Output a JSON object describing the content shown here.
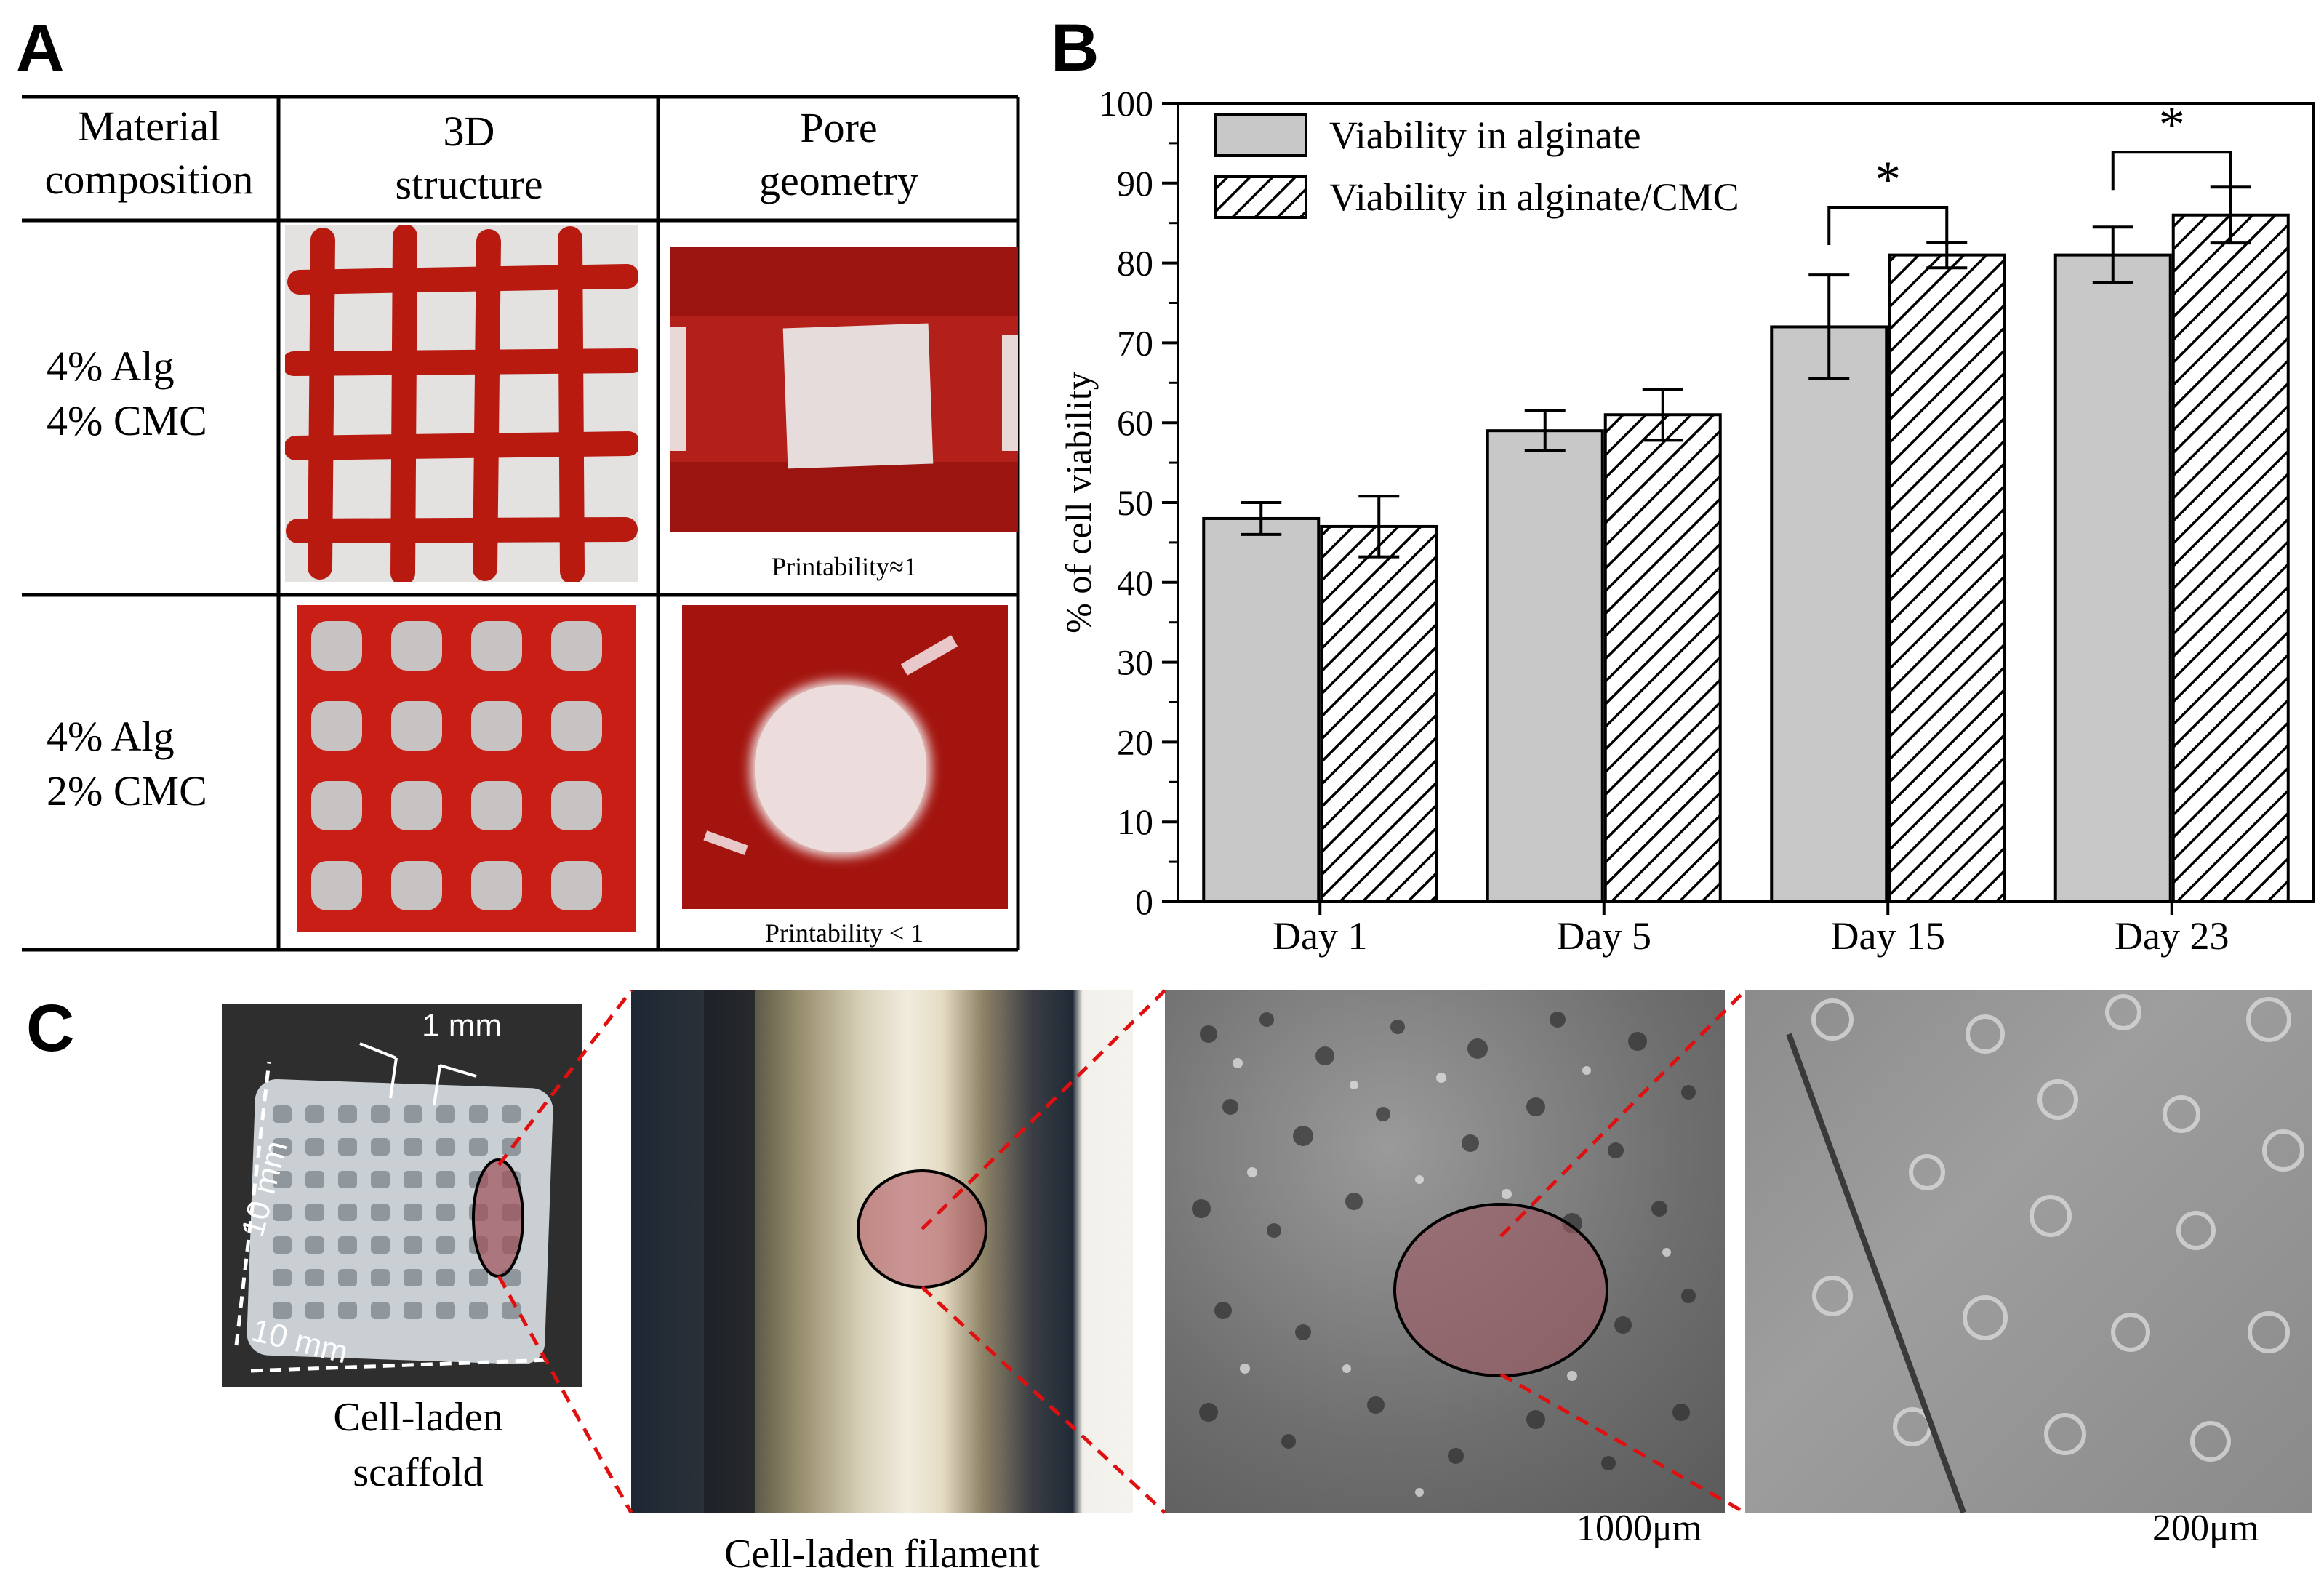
{
  "panels": {
    "a": "A",
    "b": "B",
    "c": "C"
  },
  "panel_a": {
    "headers": {
      "material_line1": "Material",
      "material_line2": "composition",
      "structure_line1": "3D",
      "structure_line2": "structure",
      "pore_line1": "Pore",
      "pore_line2": "geometry"
    },
    "rows": [
      {
        "line1": "4% Alg",
        "line2": "4% CMC",
        "printability": "Printability≈1"
      },
      {
        "line1": "4% Alg",
        "line2": "2% CMC",
        "printability": "Printability < 1"
      }
    ]
  },
  "chart_data": {
    "type": "bar",
    "categories": [
      "Day 1",
      "Day 5",
      "Day 15",
      "Day 23"
    ],
    "series": [
      {
        "name": "Viability in alginate",
        "values": [
          48,
          59,
          72,
          81
        ],
        "errors": [
          2,
          2.5,
          6.5,
          3.5
        ],
        "fill": "#c8c8c8"
      },
      {
        "name": "Viability in alginate/CMC",
        "values": [
          47,
          61,
          81,
          86
        ],
        "errors": [
          3.8,
          3.2,
          1.6,
          3.5
        ],
        "fill": "hatch"
      }
    ],
    "ylabel": "% of cell viability",
    "ylim": [
      0,
      100
    ],
    "yticks": [
      0,
      10,
      20,
      30,
      40,
      50,
      60,
      70,
      80,
      90,
      100
    ],
    "significance": [
      {
        "category": "Day 15",
        "label": "*"
      },
      {
        "category": "Day 23",
        "label": "*"
      }
    ],
    "legend_position": "top-left"
  },
  "panel_c": {
    "scaffold_caption_line1": "Cell-laden",
    "scaffold_caption_line2": "scaffold",
    "dim_1mm": "1 mm",
    "dim_10mm_vertical": "10 mm",
    "dim_10mm_horizontal": "10 mm",
    "filament_caption": "Cell-laden filament",
    "scale_1": "1000μm",
    "scale_2": "200μm"
  }
}
